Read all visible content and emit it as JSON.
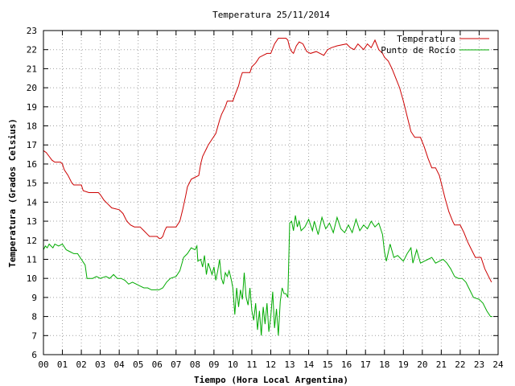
{
  "chart_data": {
    "type": "line",
    "title": "Temperatura 25/11/2014",
    "xlabel": "Tiempo (Hora Local Argentina)",
    "ylabel": "Temperatura (Grados Celsius)",
    "xlim": [
      0,
      24
    ],
    "ylim": [
      6,
      23
    ],
    "grid": true,
    "legend_position": "top-right",
    "x_ticks": [
      "00",
      "01",
      "02",
      "03",
      "04",
      "05",
      "06",
      "07",
      "08",
      "09",
      "10",
      "11",
      "12",
      "13",
      "14",
      "15",
      "16",
      "17",
      "18",
      "19",
      "20",
      "21",
      "22",
      "23",
      "24"
    ],
    "y_ticks": [
      "6",
      "7",
      "8",
      "9",
      "10",
      "11",
      "12",
      "13",
      "14",
      "15",
      "16",
      "17",
      "18",
      "19",
      "20",
      "21",
      "22",
      "23"
    ],
    "series": [
      {
        "name": "Temperatura",
        "color": "#cc0000",
        "points": [
          [
            0.0,
            16.7
          ],
          [
            0.15,
            16.6
          ],
          [
            0.3,
            16.4
          ],
          [
            0.45,
            16.2
          ],
          [
            0.6,
            16.1
          ],
          [
            0.9,
            16.1
          ],
          [
            1.0,
            16.0
          ],
          [
            1.1,
            15.7
          ],
          [
            1.3,
            15.4
          ],
          [
            1.5,
            15.0
          ],
          [
            1.6,
            14.9
          ],
          [
            2.0,
            14.9
          ],
          [
            2.1,
            14.6
          ],
          [
            2.4,
            14.5
          ],
          [
            2.9,
            14.5
          ],
          [
            3.0,
            14.4
          ],
          [
            3.2,
            14.1
          ],
          [
            3.4,
            13.9
          ],
          [
            3.6,
            13.7
          ],
          [
            4.0,
            13.6
          ],
          [
            4.2,
            13.4
          ],
          [
            4.4,
            13.0
          ],
          [
            4.6,
            12.8
          ],
          [
            4.8,
            12.7
          ],
          [
            5.1,
            12.7
          ],
          [
            5.3,
            12.5
          ],
          [
            5.5,
            12.3
          ],
          [
            5.6,
            12.2
          ],
          [
            6.0,
            12.2
          ],
          [
            6.1,
            12.1
          ],
          [
            6.2,
            12.1
          ],
          [
            6.3,
            12.2
          ],
          [
            6.4,
            12.5
          ],
          [
            6.5,
            12.7
          ],
          [
            7.0,
            12.7
          ],
          [
            7.2,
            13.0
          ],
          [
            7.35,
            13.6
          ],
          [
            7.5,
            14.3
          ],
          [
            7.6,
            14.8
          ],
          [
            7.7,
            15.0
          ],
          [
            7.8,
            15.2
          ],
          [
            8.0,
            15.3
          ],
          [
            8.2,
            15.4
          ],
          [
            8.3,
            16.0
          ],
          [
            8.4,
            16.4
          ],
          [
            8.6,
            16.8
          ],
          [
            8.7,
            17.0
          ],
          [
            8.9,
            17.3
          ],
          [
            9.1,
            17.6
          ],
          [
            9.3,
            18.3
          ],
          [
            9.4,
            18.6
          ],
          [
            9.6,
            19.0
          ],
          [
            9.7,
            19.3
          ],
          [
            10.0,
            19.3
          ],
          [
            10.1,
            19.6
          ],
          [
            10.3,
            20.1
          ],
          [
            10.4,
            20.5
          ],
          [
            10.5,
            20.8
          ],
          [
            10.9,
            20.8
          ],
          [
            11.0,
            21.1
          ],
          [
            11.2,
            21.3
          ],
          [
            11.4,
            21.6
          ],
          [
            11.6,
            21.7
          ],
          [
            11.8,
            21.8
          ],
          [
            12.0,
            21.8
          ],
          [
            12.2,
            22.3
          ],
          [
            12.4,
            22.6
          ],
          [
            12.8,
            22.6
          ],
          [
            12.9,
            22.5
          ],
          [
            13.0,
            22.1
          ],
          [
            13.1,
            21.9
          ],
          [
            13.2,
            21.8
          ],
          [
            13.35,
            22.2
          ],
          [
            13.5,
            22.4
          ],
          [
            13.7,
            22.3
          ],
          [
            13.9,
            21.9
          ],
          [
            14.1,
            21.8
          ],
          [
            14.4,
            21.9
          ],
          [
            14.8,
            21.7
          ],
          [
            15.0,
            22.0
          ],
          [
            15.2,
            22.1
          ],
          [
            15.5,
            22.2
          ],
          [
            16.0,
            22.3
          ],
          [
            16.2,
            22.1
          ],
          [
            16.4,
            22.0
          ],
          [
            16.6,
            22.3
          ],
          [
            16.9,
            22.0
          ],
          [
            17.1,
            22.3
          ],
          [
            17.3,
            22.1
          ],
          [
            17.5,
            22.5
          ],
          [
            17.7,
            22.0
          ],
          [
            17.9,
            21.8
          ],
          [
            18.0,
            21.6
          ],
          [
            18.2,
            21.4
          ],
          [
            18.4,
            21.0
          ],
          [
            18.6,
            20.5
          ],
          [
            18.8,
            20.0
          ],
          [
            19.0,
            19.3
          ],
          [
            19.2,
            18.5
          ],
          [
            19.4,
            17.7
          ],
          [
            19.6,
            17.4
          ],
          [
            19.9,
            17.4
          ],
          [
            20.1,
            16.9
          ],
          [
            20.3,
            16.3
          ],
          [
            20.5,
            15.8
          ],
          [
            20.7,
            15.8
          ],
          [
            20.9,
            15.4
          ],
          [
            21.0,
            15.0
          ],
          [
            21.2,
            14.2
          ],
          [
            21.4,
            13.5
          ],
          [
            21.6,
            13.0
          ],
          [
            21.7,
            12.8
          ],
          [
            22.0,
            12.8
          ],
          [
            22.2,
            12.4
          ],
          [
            22.4,
            11.9
          ],
          [
            22.6,
            11.5
          ],
          [
            22.8,
            11.1
          ],
          [
            23.1,
            11.1
          ],
          [
            23.3,
            10.5
          ],
          [
            23.5,
            10.1
          ],
          [
            23.65,
            9.8
          ]
        ]
      },
      {
        "name": "Punto de Rocío",
        "color": "#00aa00",
        "points": [
          [
            0.0,
            11.5
          ],
          [
            0.1,
            11.7
          ],
          [
            0.2,
            11.6
          ],
          [
            0.3,
            11.8
          ],
          [
            0.4,
            11.7
          ],
          [
            0.5,
            11.6
          ],
          [
            0.6,
            11.8
          ],
          [
            0.8,
            11.7
          ],
          [
            1.0,
            11.8
          ],
          [
            1.2,
            11.5
          ],
          [
            1.4,
            11.4
          ],
          [
            1.6,
            11.3
          ],
          [
            1.8,
            11.3
          ],
          [
            2.0,
            11.0
          ],
          [
            2.2,
            10.7
          ],
          [
            2.3,
            10.0
          ],
          [
            2.6,
            10.0
          ],
          [
            2.8,
            10.1
          ],
          [
            3.0,
            10.0
          ],
          [
            3.3,
            10.1
          ],
          [
            3.5,
            10.0
          ],
          [
            3.7,
            10.2
          ],
          [
            3.9,
            10.0
          ],
          [
            4.1,
            10.0
          ],
          [
            4.3,
            9.9
          ],
          [
            4.5,
            9.7
          ],
          [
            4.7,
            9.8
          ],
          [
            4.9,
            9.7
          ],
          [
            5.1,
            9.6
          ],
          [
            5.3,
            9.5
          ],
          [
            5.5,
            9.5
          ],
          [
            5.7,
            9.4
          ],
          [
            6.1,
            9.4
          ],
          [
            6.3,
            9.5
          ],
          [
            6.5,
            9.8
          ],
          [
            6.7,
            10.0
          ],
          [
            7.0,
            10.1
          ],
          [
            7.2,
            10.4
          ],
          [
            7.4,
            11.1
          ],
          [
            7.6,
            11.3
          ],
          [
            7.8,
            11.6
          ],
          [
            8.0,
            11.5
          ],
          [
            8.1,
            11.7
          ],
          [
            8.15,
            10.9
          ],
          [
            8.3,
            11.0
          ],
          [
            8.4,
            10.6
          ],
          [
            8.5,
            11.2
          ],
          [
            8.6,
            10.2
          ],
          [
            8.7,
            10.8
          ],
          [
            8.8,
            10.5
          ],
          [
            8.9,
            10.2
          ],
          [
            9.0,
            10.6
          ],
          [
            9.1,
            9.9
          ],
          [
            9.2,
            10.4
          ],
          [
            9.3,
            11.0
          ],
          [
            9.4,
            10.0
          ],
          [
            9.5,
            9.7
          ],
          [
            9.6,
            10.3
          ],
          [
            9.7,
            10.1
          ],
          [
            9.8,
            10.4
          ],
          [
            9.9,
            10.0
          ],
          [
            10.0,
            9.5
          ],
          [
            10.1,
            8.1
          ],
          [
            10.2,
            9.5
          ],
          [
            10.3,
            8.5
          ],
          [
            10.4,
            9.4
          ],
          [
            10.5,
            8.9
          ],
          [
            10.6,
            10.3
          ],
          [
            10.7,
            9.0
          ],
          [
            10.8,
            8.6
          ],
          [
            10.9,
            9.5
          ],
          [
            11.0,
            8.3
          ],
          [
            11.1,
            7.8
          ],
          [
            11.2,
            8.7
          ],
          [
            11.3,
            7.3
          ],
          [
            11.4,
            8.3
          ],
          [
            11.5,
            7.0
          ],
          [
            11.6,
            8.5
          ],
          [
            11.7,
            7.6
          ],
          [
            11.8,
            8.7
          ],
          [
            11.9,
            7.2
          ],
          [
            12.0,
            8.0
          ],
          [
            12.1,
            9.3
          ],
          [
            12.2,
            7.4
          ],
          [
            12.3,
            8.4
          ],
          [
            12.4,
            7.0
          ],
          [
            12.5,
            8.8
          ],
          [
            12.6,
            9.5
          ],
          [
            12.7,
            9.2
          ],
          [
            12.8,
            9.2
          ],
          [
            12.9,
            9.0
          ],
          [
            13.0,
            12.9
          ],
          [
            13.1,
            13.0
          ],
          [
            13.2,
            12.5
          ],
          [
            13.3,
            13.3
          ],
          [
            13.4,
            12.7
          ],
          [
            13.5,
            13.0
          ],
          [
            13.6,
            12.5
          ],
          [
            13.8,
            12.7
          ],
          [
            14.0,
            13.1
          ],
          [
            14.2,
            12.5
          ],
          [
            14.3,
            13.0
          ],
          [
            14.5,
            12.3
          ],
          [
            14.7,
            13.2
          ],
          [
            14.9,
            12.6
          ],
          [
            15.1,
            12.9
          ],
          [
            15.3,
            12.4
          ],
          [
            15.5,
            13.2
          ],
          [
            15.7,
            12.6
          ],
          [
            15.9,
            12.4
          ],
          [
            16.1,
            12.8
          ],
          [
            16.3,
            12.4
          ],
          [
            16.5,
            13.1
          ],
          [
            16.7,
            12.5
          ],
          [
            16.9,
            12.8
          ],
          [
            17.1,
            12.6
          ],
          [
            17.3,
            13.0
          ],
          [
            17.5,
            12.7
          ],
          [
            17.7,
            12.9
          ],
          [
            17.9,
            12.3
          ],
          [
            18.0,
            11.4
          ],
          [
            18.1,
            10.9
          ],
          [
            18.3,
            11.8
          ],
          [
            18.5,
            11.1
          ],
          [
            18.7,
            11.2
          ],
          [
            18.9,
            11.0
          ],
          [
            19.0,
            10.9
          ],
          [
            19.2,
            11.3
          ],
          [
            19.4,
            11.6
          ],
          [
            19.5,
            10.8
          ],
          [
            19.7,
            11.5
          ],
          [
            19.9,
            10.8
          ],
          [
            20.1,
            10.9
          ],
          [
            20.3,
            11.0
          ],
          [
            20.5,
            11.1
          ],
          [
            20.7,
            10.8
          ],
          [
            20.9,
            10.9
          ],
          [
            21.1,
            11.0
          ],
          [
            21.3,
            10.8
          ],
          [
            21.5,
            10.5
          ],
          [
            21.7,
            10.1
          ],
          [
            21.9,
            10.0
          ],
          [
            22.1,
            10.0
          ],
          [
            22.3,
            9.8
          ],
          [
            22.5,
            9.4
          ],
          [
            22.7,
            9.0
          ],
          [
            23.0,
            8.9
          ],
          [
            23.2,
            8.7
          ],
          [
            23.4,
            8.3
          ],
          [
            23.6,
            8.0
          ],
          [
            23.7,
            8.0
          ]
        ]
      }
    ]
  }
}
